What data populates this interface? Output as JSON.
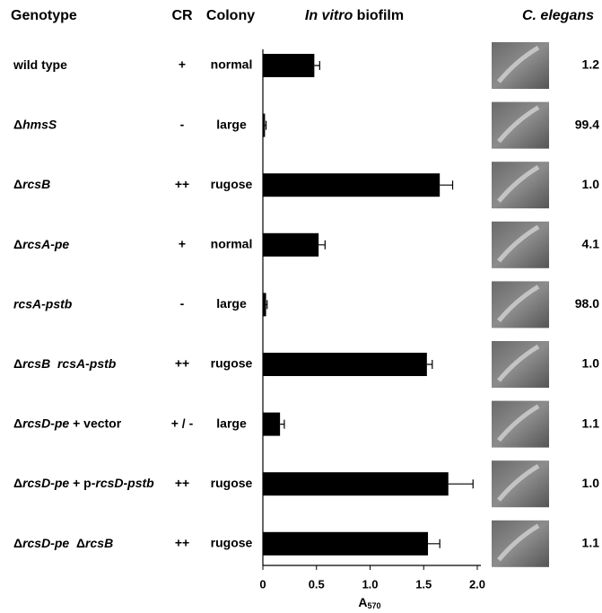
{
  "chart_data": {
    "type": "bar",
    "orientation": "horizontal",
    "headers": {
      "genotype": "Genotype",
      "cr": "CR",
      "colony": "Colony",
      "biofilm": [
        {
          "text": "In vitro",
          "italic": true
        },
        " biofilm"
      ],
      "c_elegans": [
        {
          "text": "C. elegans",
          "italic": true
        }
      ]
    },
    "categories": [
      [
        "wild type"
      ],
      [
        "Δ",
        {
          "text": "hmsS",
          "italic": true
        }
      ],
      [
        "Δ",
        {
          "text": "rcsB",
          "italic": true
        }
      ],
      [
        "Δ",
        {
          "text": "rcsA-pe",
          "italic": true
        }
      ],
      [
        {
          "text": "rcsA-pstb",
          "italic": true
        }
      ],
      [
        "Δ",
        {
          "text": "rcsB  rcsA-pstb",
          "italic": true
        }
      ],
      [
        "Δ",
        {
          "text": "rcsD-pe",
          "italic": true
        },
        " + vector"
      ],
      [
        "Δ",
        {
          "text": "rcsD-pe",
          "italic": true
        },
        " + p-",
        {
          "text": "rcsD-pstb",
          "italic": true
        }
      ],
      [
        "Δ",
        {
          "text": "rcsD-pe",
          "italic": true
        },
        "  Δ",
        {
          "text": "rcsB",
          "italic": true
        }
      ]
    ],
    "cr": [
      "+",
      "-",
      "++",
      "+",
      "-",
      "++",
      "+ / -",
      "++",
      "++"
    ],
    "colony": [
      "normal",
      "large",
      "rugose",
      "normal",
      "large",
      "rugose",
      "large",
      "rugose",
      "rugose"
    ],
    "values": [
      0.48,
      0.02,
      1.65,
      0.52,
      0.03,
      1.53,
      0.16,
      1.73,
      1.54
    ],
    "errors": [
      0.05,
      0.01,
      0.12,
      0.06,
      0.01,
      0.05,
      0.04,
      0.23,
      0.11
    ],
    "color": "#000000",
    "xlim": [
      0,
      2.1
    ],
    "xticks": [
      0,
      0.5,
      {
        "value": 1.0,
        "label": "1.0"
      },
      1.5,
      {
        "value": 2.0,
        "label": "2.0"
      }
    ],
    "xlabel": "A",
    "xlabel_sub": "570",
    "c_elegans": [
      "1.2",
      "99.4",
      "1.0",
      "4.1",
      "98.0",
      "1.0",
      "1.1",
      "1.0",
      "1.1"
    ]
  }
}
